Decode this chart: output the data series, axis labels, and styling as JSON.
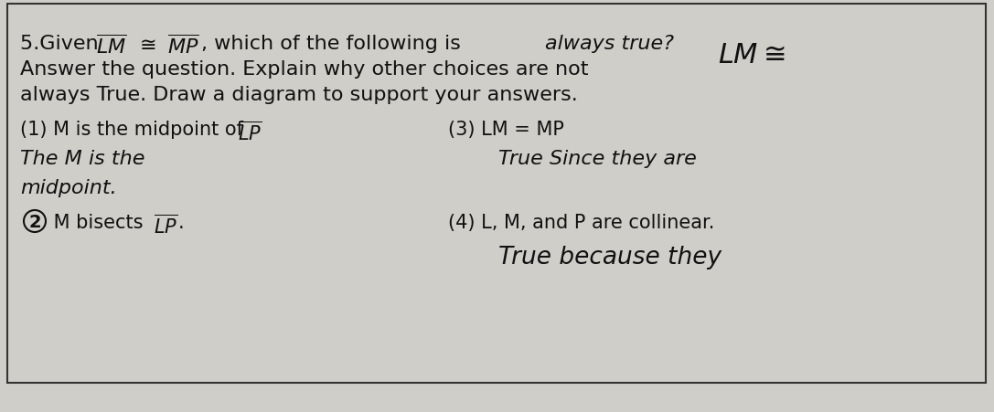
{
  "background_color": "#d0cec8",
  "border_color": "#333333",
  "text_color": "#111111",
  "hw_color": "#111111",
  "fs_header": 16,
  "fs_body": 15,
  "fs_hw": 14,
  "fs_hw_large": 16,
  "header": {
    "line1_plain": "5.Given ",
    "line1_lm": "LM",
    "line1_cong": " ≅ ",
    "line1_mp": "MP",
    "line1_rest": ", which of the following is ",
    "line1_italic": "always true?",
    "line2": "Answer the question. Explain why other choices are not",
    "line3": "always True. Draw a diagram to support your answers.",
    "topright": "LM≅"
  },
  "items": {
    "item1_plain": "(1) M is the midpoint of ",
    "item1_lp": "LP",
    "item1_hw1": "The M is the",
    "item1_hw2": "midpoint.",
    "item2_num": "2",
    "item2_plain": " M bisects ",
    "item2_lp": "LP",
    "item2_dot": ".",
    "item3_plain": "(3) LM = MP",
    "item3_hw": "True Since they are",
    "item4_plain": "(4) L, M, and P are collinear.",
    "item4_hw": "True because they"
  }
}
